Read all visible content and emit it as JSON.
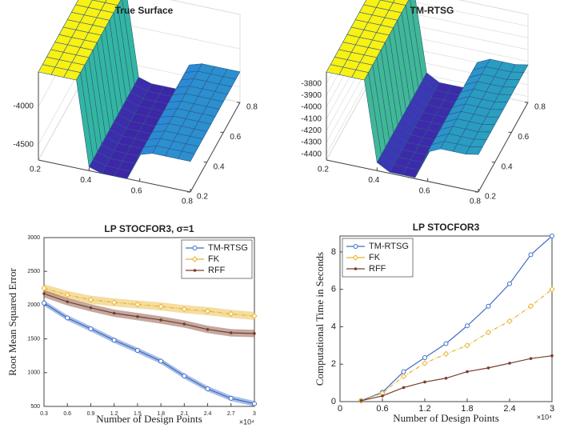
{
  "chart_data": [
    {
      "type": "surface",
      "title": "True Surface",
      "x": [
        0.2,
        0.25,
        0.3,
        0.35,
        0.4,
        0.45,
        0.5,
        0.55,
        0.6,
        0.65,
        0.7,
        0.75,
        0.8
      ],
      "y": [
        0.2,
        0.25,
        0.3,
        0.35,
        0.4,
        0.45,
        0.5,
        0.55,
        0.6,
        0.65,
        0.7,
        0.75,
        0.8
      ],
      "z": [
        -3550,
        -3550,
        -3550,
        -3550,
        -4650,
        -4700,
        -4700,
        -4700,
        -4350,
        -4300,
        -4300,
        -4300,
        -4300
      ],
      "xlim": [
        0.2,
        0.8
      ],
      "ylim": [
        0.2,
        0.8
      ],
      "zlim": [
        -4700,
        -3550
      ],
      "xticks": [
        0.2,
        0.4,
        0.6,
        0.8
      ],
      "yticks": [
        0.2,
        0.4,
        0.6,
        0.8
      ],
      "zticks": [
        -4000,
        -4500
      ]
    },
    {
      "type": "surface",
      "title": "TM-RTSG",
      "x": [
        0.2,
        0.25,
        0.3,
        0.35,
        0.4,
        0.45,
        0.5,
        0.55,
        0.6,
        0.65,
        0.7,
        0.75,
        0.8
      ],
      "y": [
        0.2,
        0.25,
        0.3,
        0.35,
        0.4,
        0.45,
        0.5,
        0.55,
        0.6,
        0.65,
        0.7,
        0.75,
        0.8
      ],
      "z": [
        -3700,
        -3700,
        -3700,
        -3700,
        -4380,
        -4440,
        -4440,
        -4440,
        -4200,
        -4150,
        -4150,
        -4150,
        -4130
      ],
      "xlim": [
        0.2,
        0.8
      ],
      "ylim": [
        0.2,
        0.8
      ],
      "zlim": [
        -4450,
        -3700
      ],
      "xticks": [
        0.2,
        0.4,
        0.6,
        0.8
      ],
      "yticks": [
        0.2,
        0.4,
        0.6,
        0.8
      ],
      "zticks": [
        -3800,
        -3900,
        -4000,
        -4100,
        -4200,
        -4300,
        -4400
      ]
    },
    {
      "type": "line",
      "title": "LP STOCFOR3, σ=1",
      "x_label": "Number of Design Points",
      "y_label": "Root Mean Squared Error",
      "x_exponent": "×10⁴",
      "x": [
        0.3,
        0.6,
        0.9,
        1.2,
        1.5,
        1.8,
        2.1,
        2.4,
        2.7,
        3
      ],
      "xlim": [
        0.3,
        3
      ],
      "xticks": [
        0.3,
        0.6,
        0.9,
        1.2,
        1.5,
        1.8,
        2.1,
        2.4,
        2.7,
        3
      ],
      "ylim": [
        500,
        3000
      ],
      "yticks": [
        500,
        1000,
        1500,
        2000,
        2500,
        3000
      ],
      "legend": "northeast",
      "series": [
        {
          "name": "TM-RTSG",
          "color": "#3f6fc6",
          "marker": "circle",
          "values": [
            2030,
            1810,
            1650,
            1480,
            1330,
            1170,
            950,
            760,
            620,
            540
          ],
          "errors": [
            40,
            40,
            40,
            40,
            40,
            40,
            40,
            40,
            40,
            40
          ]
        },
        {
          "name": "FK",
          "color": "#e8b430",
          "marker": "diamond",
          "values": [
            2250,
            2150,
            2080,
            2040,
            2010,
            1980,
            1940,
            1910,
            1870,
            1840
          ],
          "errors": [
            60,
            60,
            60,
            60,
            60,
            60,
            60,
            60,
            60,
            60
          ]
        },
        {
          "name": "RFF",
          "color": "#7a3d2c",
          "marker": "dot",
          "values": [
            2170,
            2050,
            1960,
            1880,
            1830,
            1780,
            1720,
            1640,
            1590,
            1580
          ],
          "errors": [
            55,
            55,
            55,
            55,
            55,
            55,
            55,
            55,
            55,
            55
          ]
        }
      ]
    },
    {
      "type": "line",
      "title": "LP STOCFOR3",
      "x_label": "Number of Design Points",
      "y_label": "Computational Time in Seconds",
      "x_exponent": "×10⁴",
      "x": [
        0.3,
        0.6,
        0.9,
        1.2,
        1.5,
        1.8,
        2.1,
        2.4,
        2.7,
        3
      ],
      "xlim": [
        0,
        3
      ],
      "xticks": [
        0,
        0.6,
        1.2,
        1.8,
        2.4,
        3
      ],
      "ylim": [
        0,
        8.85
      ],
      "yticks": [
        0,
        2,
        4,
        6,
        8
      ],
      "legend": "northwest",
      "series": [
        {
          "name": "TM-RTSG",
          "color": "#3f6fc6",
          "marker": "circle",
          "values": [
            0.05,
            0.5,
            1.6,
            2.35,
            3.1,
            4.05,
            5.1,
            6.3,
            7.85,
            8.85
          ]
        },
        {
          "name": "FK",
          "color": "#e8b430",
          "marker": "diamond",
          "values": [
            0.05,
            0.45,
            1.35,
            2.05,
            2.55,
            3.0,
            3.7,
            4.3,
            5.1,
            6.0
          ]
        },
        {
          "name": "RFF",
          "color": "#7a3d2c",
          "marker": "dot",
          "values": [
            0.05,
            0.3,
            0.75,
            1.05,
            1.25,
            1.6,
            1.8,
            2.05,
            2.3,
            2.45
          ]
        }
      ]
    }
  ]
}
